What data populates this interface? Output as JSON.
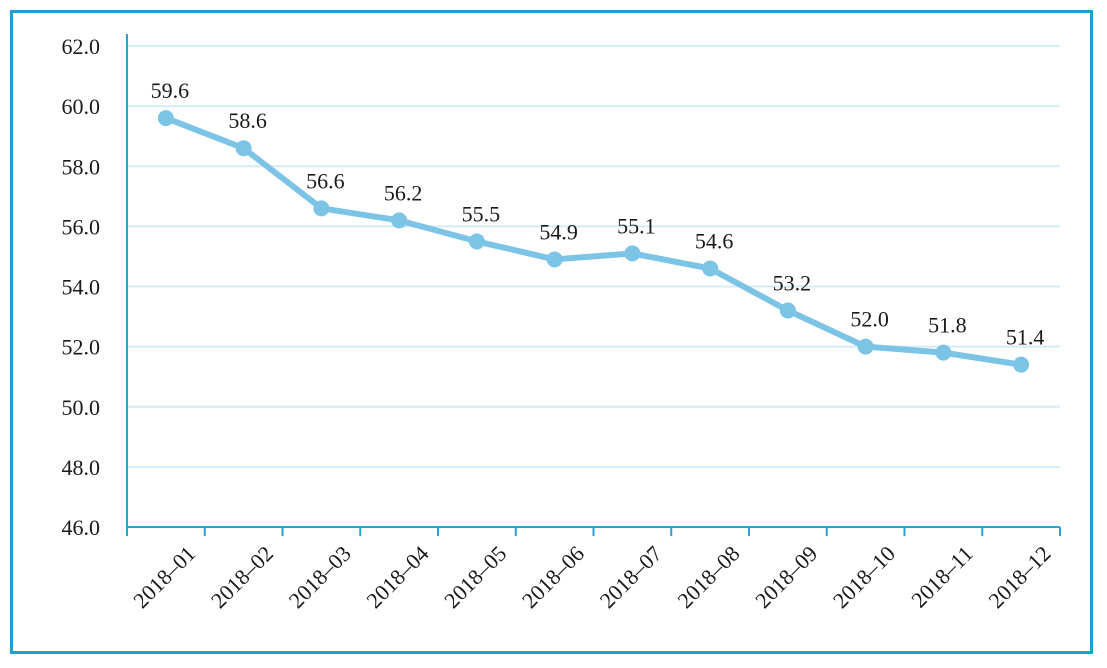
{
  "chart_data": {
    "type": "line",
    "title": "",
    "xlabel": "",
    "ylabel": "",
    "categories": [
      "2018–01",
      "2018–02",
      "2018–03",
      "2018–04",
      "2018–05",
      "2018–06",
      "2018–07",
      "2018–08",
      "2018–09",
      "2018–10",
      "2018–11",
      "2018–12"
    ],
    "values": [
      59.6,
      58.6,
      56.6,
      56.2,
      55.5,
      54.9,
      55.1,
      54.6,
      53.2,
      52.0,
      51.8,
      51.4
    ],
    "data_labels": [
      "59.6",
      "58.6",
      "56.6",
      "56.2",
      "55.5",
      "54.9",
      "55.1",
      "54.6",
      "53.2",
      "52.0",
      "51.8",
      "51.4"
    ],
    "yticks": [
      "46.0",
      "48.0",
      "50.0",
      "52.0",
      "54.0",
      "56.0",
      "58.0",
      "60.0",
      "62.0"
    ],
    "ylim": [
      46,
      62
    ],
    "grid": "horizontal",
    "legend": "none",
    "colors": {
      "line": "#7cc4e6",
      "marker": "#7cc4e6",
      "axis": "#2aa2d6",
      "grid": "#d3ecf8",
      "frame": "#1f9fd0"
    }
  }
}
